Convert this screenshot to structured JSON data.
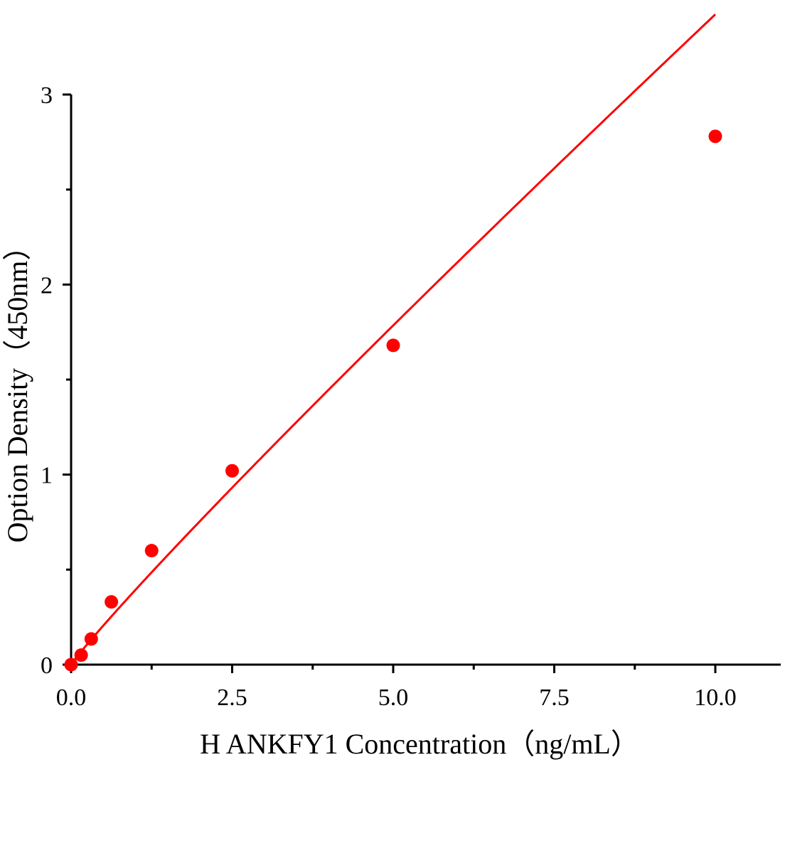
{
  "chart_data": {
    "type": "scatter",
    "title": "",
    "xlabel": "H ANKFY1 Concentration（ng/mL）",
    "ylabel": "Option Density（450nm）",
    "xlim": [
      0,
      11
    ],
    "ylim": [
      0,
      3
    ],
    "xticks": [
      0,
      2.5,
      5,
      7.5,
      10
    ],
    "xtick_labels": [
      "0.0",
      "2.5",
      "5.0",
      "7.5",
      "10.0"
    ],
    "yticks": [
      0,
      1,
      2,
      3
    ],
    "ytick_labels": [
      "0",
      "1",
      "2",
      "3"
    ],
    "grid": false,
    "color": "#ff0000",
    "series": [
      {
        "x": [
          0,
          0.156,
          0.3125,
          0.625,
          1.25,
          2.5,
          5,
          10
        ],
        "y": [
          0,
          0.05,
          0.135,
          0.33,
          0.6,
          1.02,
          1.68,
          2.78
        ],
        "fit": "curve"
      }
    ]
  }
}
